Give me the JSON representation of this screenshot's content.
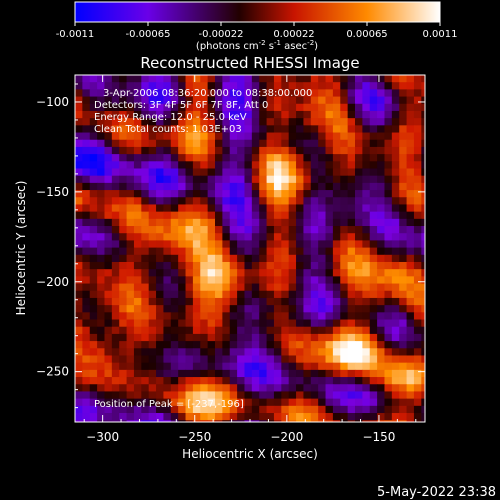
{
  "colorbar": {
    "ticks": [
      "-0.0011",
      "-0.00065",
      "-0.00022",
      "0.00022",
      "0.00065",
      "0.0011"
    ],
    "units": "(photons cm^-2 s^-1 asec^-2)",
    "units_parts": {
      "base": "(photons cm",
      "exp1": "-2",
      "mid1": " s",
      "exp2": "-1",
      "mid2": " asec",
      "exp3": "-2",
      "end": ")"
    },
    "range": [
      -0.0011,
      0.0011
    ]
  },
  "plot": {
    "title": "Reconstructed RHESSI Image",
    "xlabel": "Heliocentric X (arcsec)",
    "ylabel": "Heliocentric Y (arcsec)",
    "info_lines": [
      "3-Apr-2006 08:36:20.000 to 08:38:00.000",
      "Detectors: 3F 4F 5F 6F 7F 8F, Att 0",
      "Energy Range: 12.0 - 25.0 keV",
      "Clean     Total counts: 1.03E+03"
    ],
    "peak_label": "Position of Peak = [-237,-196]"
  },
  "footer": {
    "timestamp": "5-May-2022 23:38"
  },
  "chart_data": {
    "type": "heatmap",
    "title": "Reconstructed RHESSI Image",
    "xlabel": "Heliocentric X (arcsec)",
    "ylabel": "Heliocentric Y (arcsec)",
    "xlim": [
      -315,
      -125
    ],
    "ylim": [
      -278,
      -85
    ],
    "x_ticks": [
      -300,
      -250,
      -200,
      -150
    ],
    "y_ticks": [
      -100,
      -150,
      -200,
      -250
    ],
    "colormap": [
      "#0000ff",
      "#7a00e0",
      "#1a0000",
      "#d01a00",
      "#ff9000",
      "#ffffff"
    ],
    "value_range": [
      -0.0011,
      0.0011
    ],
    "peak": [
      -237,
      -196
    ],
    "bright_regions": [
      {
        "x": -237,
        "y": -196,
        "value": 0.0011
      },
      {
        "x": -165,
        "y": -235,
        "value": 0.00095
      },
      {
        "x": -140,
        "y": -195,
        "value": 0.0008
      },
      {
        "x": -200,
        "y": -138,
        "value": 0.0007
      },
      {
        "x": -290,
        "y": -210,
        "value": 0.0009
      },
      {
        "x": -270,
        "y": -175,
        "value": 0.0007
      },
      {
        "x": -180,
        "y": -100,
        "value": 0.0006
      },
      {
        "x": -140,
        "y": -250,
        "value": 0.0008
      },
      {
        "x": -130,
        "y": -110,
        "value": 0.0006
      },
      {
        "x": -305,
        "y": -245,
        "value": 0.0006
      },
      {
        "x": -250,
        "y": -270,
        "value": 0.0005
      }
    ]
  }
}
